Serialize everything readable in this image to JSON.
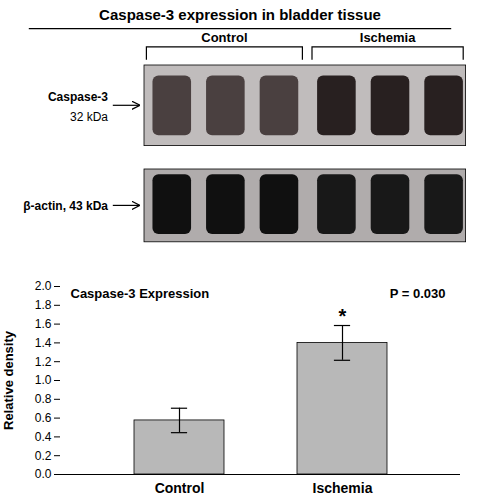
{
  "chart_data": {
    "type": "bar",
    "title": "Caspase-3 expression in bladder tissue",
    "categories": [
      "Control",
      "Ischemia"
    ],
    "values": [
      0.575,
      1.4
    ],
    "errors": [
      0.13,
      0.185
    ],
    "color": "#b8b8b8",
    "ylabel": "Relative density",
    "ylim": [
      0.0,
      2.0
    ],
    "yticks": [
      {
        "value": 0.0,
        "label": "0.0"
      },
      0.2,
      0.4,
      0.6,
      0.8,
      {
        "value": 1.0,
        "label": "1.0"
      },
      1.2,
      1.4,
      1.6,
      1.8,
      {
        "value": 2.0,
        "label": "2.0"
      }
    ],
    "grid": false,
    "annotations": [
      "Caspase-3 Expression",
      "P = 0.030",
      "*",
      "Caspase-3",
      "32 kDa",
      "β-actin, 43 kDa"
    ]
  }
}
